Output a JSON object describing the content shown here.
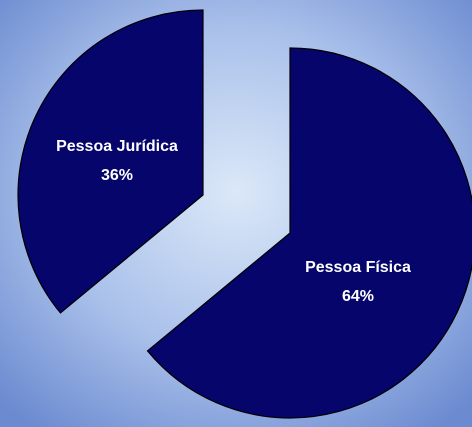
{
  "chart_data": {
    "type": "pie",
    "categories": [
      "Pessoa Física",
      "Pessoa Jurídica"
    ],
    "values": [
      64,
      36
    ],
    "value_labels": [
      "64%",
      "36%"
    ],
    "color": "#05056b"
  }
}
